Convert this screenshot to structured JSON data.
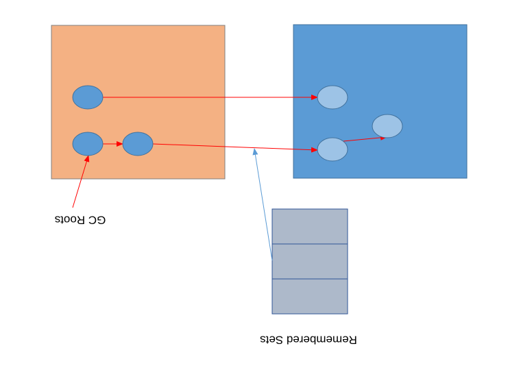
{
  "diagram": {
    "labels": {
      "gc_roots": "GC Roots",
      "remembered_sets": "Remembered Sets"
    },
    "colors": {
      "young_region_fill": "#F4B183",
      "old_region_fill": "#5B9BD5",
      "young_node_fill": "#5B9BD5",
      "old_node_fill": "#9DC3E6",
      "node_stroke": "#41719C",
      "reference_arrow": "#FF0000",
      "remembered_set_arrow": "#5B9BD5",
      "remembered_set_fill": "#ADB9CA",
      "remembered_set_stroke": "#2F5597"
    }
  }
}
